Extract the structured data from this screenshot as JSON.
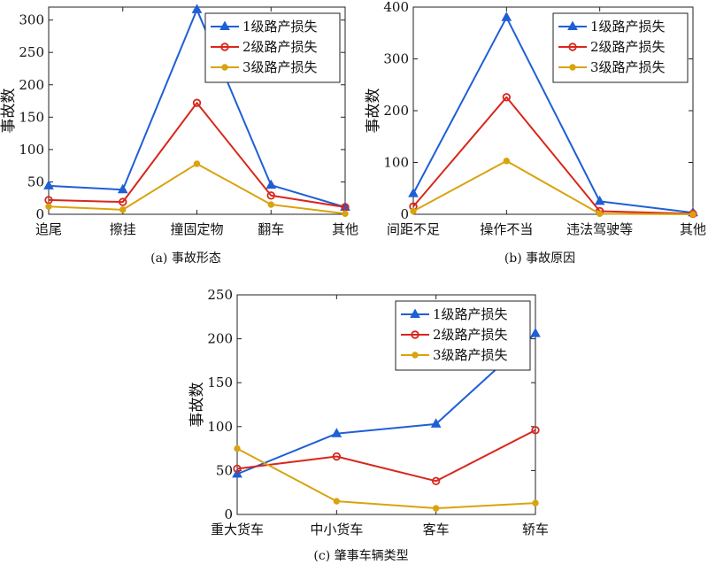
{
  "colors": {
    "series1": "#1f5fd6",
    "series2": "#d8271c",
    "series3": "#d9a30f",
    "axis": "#222222"
  },
  "legend_placement": "top-right",
  "chart_data": [
    {
      "type": "line",
      "caption": "(a)  事故形态",
      "ylabel": "事故数",
      "xlabel": "",
      "categories": [
        "追尾",
        "擦挂",
        "撞固定物",
        "翻车",
        "其他"
      ],
      "ylim": [
        0,
        320
      ],
      "yticks": [
        0,
        50,
        100,
        150,
        200,
        250,
        300
      ],
      "grid": false,
      "series": [
        {
          "name": "1级路产损失",
          "marker": "triangle",
          "values": [
            44,
            38,
            316,
            45,
            11
          ]
        },
        {
          "name": "2级路产损失",
          "marker": "circle",
          "values": [
            22,
            19,
            172,
            29,
            11
          ]
        },
        {
          "name": "3级路产损失",
          "marker": "dot",
          "values": [
            12,
            7,
            78,
            15,
            1
          ]
        }
      ]
    },
    {
      "type": "line",
      "caption": "(b)  事故原因",
      "ylabel": "事故数",
      "xlabel": "",
      "categories": [
        "间距不足",
        "操作不当",
        "违法驾驶等",
        "其他"
      ],
      "ylim": [
        0,
        400
      ],
      "yticks": [
        0,
        100,
        200,
        300,
        400
      ],
      "grid": false,
      "series": [
        {
          "name": "1级路产损失",
          "marker": "triangle",
          "values": [
            40,
            380,
            25,
            3
          ]
        },
        {
          "name": "2级路产损失",
          "marker": "circle",
          "values": [
            15,
            226,
            6,
            1
          ]
        },
        {
          "name": "3级路产损失",
          "marker": "dot",
          "values": [
            6,
            103,
            1,
            0
          ]
        }
      ]
    },
    {
      "type": "line",
      "caption": "(c)  肇事车辆类型",
      "ylabel": "事故数",
      "xlabel": "",
      "categories": [
        "重大货车",
        "中小货车",
        "客车",
        "轿车"
      ],
      "ylim": [
        0,
        250
      ],
      "yticks": [
        0,
        50,
        100,
        150,
        200,
        250
      ],
      "grid": false,
      "series": [
        {
          "name": "1级路产损失",
          "marker": "triangle",
          "values": [
            46,
            92,
            103,
            206
          ]
        },
        {
          "name": "2级路产损失",
          "marker": "circle",
          "values": [
            52,
            66,
            38,
            96
          ]
        },
        {
          "name": "3级路产损失",
          "marker": "dot",
          "values": [
            75,
            15,
            7,
            13
          ]
        }
      ]
    }
  ]
}
